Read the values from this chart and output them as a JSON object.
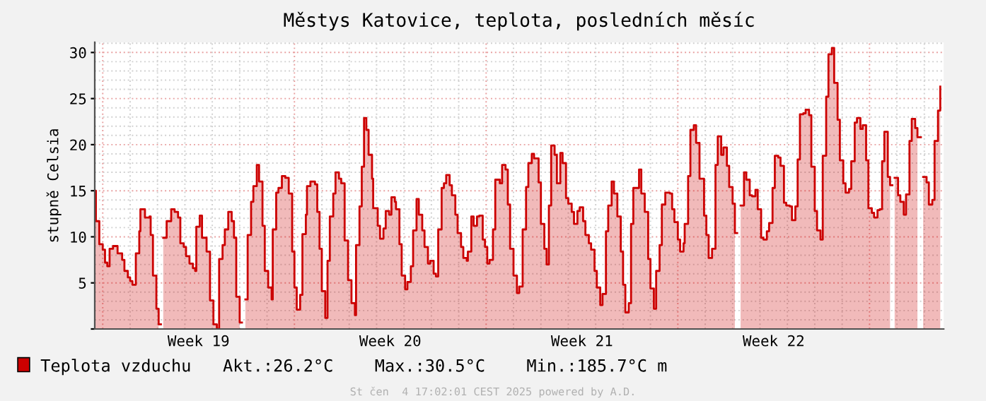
{
  "chart_data": {
    "type": "area",
    "title": "Městys Katovice, teplota, posledních měsíc",
    "ylabel": "stupně Celsia",
    "x": [
      "2025-05-04T17:00",
      "2025-05-04T18:00",
      "2025-05-04T21:00",
      "2025-05-05T00:00",
      "2025-05-05T02:00",
      "2025-05-05T04:00",
      "2025-05-05T06:00",
      "2025-05-05T09:00",
      "2025-05-05T13:00",
      "2025-05-05T17:00",
      "2025-05-05T19:00",
      "2025-05-05T22:00",
      "2025-05-06T00:00",
      "2025-05-06T02:00",
      "2025-05-06T05:00",
      "2025-05-06T08:00",
      "2025-05-06T09:00",
      "2025-05-06T13:00",
      "2025-05-06T17:00",
      "2025-05-06T18:00",
      "2025-05-06T20:00",
      "2025-05-06T23:00",
      "2025-05-07T01:00",
      "2025-05-07T03:00",
      "2025-05-07T05:00",
      "2025-05-07T08:00",
      "2025-05-07T12:00",
      "2025-05-07T15:00",
      "2025-05-07T18:00",
      "2025-05-07T20:00",
      "2025-05-07T23:00",
      "2025-05-08T01:00",
      "2025-05-08T04:00",
      "2025-05-08T07:00",
      "2025-05-08T09:00",
      "2025-05-08T10:00",
      "2025-05-08T13:00",
      "2025-05-08T15:00",
      "2025-05-08T19:00",
      "2025-05-08T22:00",
      "2025-05-09T01:00",
      "2025-05-09T04:00",
      "2025-05-09T06:00",
      "2025-05-09T09:00",
      "2025-05-09T11:00",
      "2025-05-09T14:00",
      "2025-05-09T17:00",
      "2025-05-09T19:00",
      "2025-05-09T21:00",
      "2025-05-10T00:00",
      "2025-05-10T02:00",
      "2025-05-10T05:00",
      "2025-05-10T07:00",
      "2025-05-10T10:00",
      "2025-05-10T12:00",
      "2025-05-10T15:00",
      "2025-05-10T17:00",
      "2025-05-10T20:00",
      "2025-05-10T22:00",
      "2025-05-11T01:00",
      "2025-05-11T04:00",
      "2025-05-11T05:00",
      "2025-05-11T08:00",
      "2025-05-11T10:00",
      "2025-05-11T13:00",
      "2025-05-11T16:00",
      "2025-05-11T19:00",
      "2025-05-11T22:00",
      "2025-05-12T00:00",
      "2025-05-12T02:00",
      "2025-05-12T05:00",
      "2025-05-12T07:00",
      "2025-05-12T10:00",
      "2025-05-12T11:00",
      "2025-05-12T14:00",
      "2025-05-12T18:00",
      "2025-05-12T20:00",
      "2025-05-12T22:00",
      "2025-05-13T00:00",
      "2025-05-13T03:00",
      "2025-05-13T05:00",
      "2025-05-13T07:00",
      "2025-05-13T10:00",
      "2025-05-13T12:00",
      "2025-05-13T15:00",
      "2025-05-13T17:00",
      "2025-05-13T20:00",
      "2025-05-13T23:00",
      "2025-05-14T02:00",
      "2025-05-14T05:00",
      "2025-05-14T06:00",
      "2025-05-14T09:00",
      "2025-05-14T11:00",
      "2025-05-14T13:00",
      "2025-05-14T15:00",
      "2025-05-14T17:00",
      "2025-05-14T20:00",
      "2025-05-14T21:00",
      "2025-05-15T01:00",
      "2025-05-15T03:00",
      "2025-05-15T06:00",
      "2025-05-15T08:00",
      "2025-05-15T11:00",
      "2025-05-15T13:00",
      "2025-05-15T16:00",
      "2025-05-15T17:00",
      "2025-05-15T20:00",
      "2025-05-15T22:00",
      "2025-05-16T01:00",
      "2025-05-16T03:00",
      "2025-05-16T06:00",
      "2025-05-16T08:00",
      "2025-05-16T11:00",
      "2025-05-16T13:00",
      "2025-05-16T16:00",
      "2025-05-16T18:00",
      "2025-05-16T21:00",
      "2025-05-16T23:00",
      "2025-05-17T02:00",
      "2025-05-17T04:00",
      "2025-05-17T06:00",
      "2025-05-17T09:00",
      "2025-05-17T11:00",
      "2025-05-17T13:00",
      "2025-05-17T16:00",
      "2025-05-17T18:00",
      "2025-05-17T21:00",
      "2025-05-17T23:00",
      "2025-05-18T02:00",
      "2025-05-18T04:00",
      "2025-05-18T07:00",
      "2025-05-18T08:00",
      "2025-05-18T11:00",
      "2025-05-18T13:00",
      "2025-05-18T16:00",
      "2025-05-18T18:00",
      "2025-05-18T21:00",
      "2025-05-18T23:00",
      "2025-05-19T01:00",
      "2025-05-19T03:00",
      "2025-05-19T06:00",
      "2025-05-19T08:00",
      "2025-05-19T12:00",
      "2025-05-19T14:00",
      "2025-05-19T17:00",
      "2025-05-19T19:00",
      "2025-05-19T21:00",
      "2025-05-20T00:00",
      "2025-05-20T03:00",
      "2025-05-20T05:00",
      "2025-05-20T08:00",
      "2025-05-20T11:00",
      "2025-05-20T13:00",
      "2025-05-20T16:00",
      "2025-05-20T18:00",
      "2025-05-20T22:00",
      "2025-05-21T00:00",
      "2025-05-21T03:00",
      "2025-05-21T05:00",
      "2025-05-21T07:00",
      "2025-05-21T09:00",
      "2025-05-21T12:00",
      "2025-05-21T14:00",
      "2025-05-21T17:00",
      "2025-05-21T19:00",
      "2025-05-21T22:00",
      "2025-05-22T00:00",
      "2025-05-22T03:00",
      "2025-05-22T05:00",
      "2025-05-22T08:00",
      "2025-05-22T10:00",
      "2025-05-22T13:00",
      "2025-05-22T15:00",
      "2025-05-22T18:00",
      "2025-05-22T20:00",
      "2025-05-22T23:00",
      "2025-05-23T01:00",
      "2025-05-23T04:00",
      "2025-05-23T06:00",
      "2025-05-23T09:00",
      "2025-05-23T11:00",
      "2025-05-23T14:00",
      "2025-05-23T16:00",
      "2025-05-23T19:00",
      "2025-05-23T22:00",
      "2025-05-24T00:00",
      "2025-05-24T02:00",
      "2025-05-24T05:00",
      "2025-05-24T07:00",
      "2025-05-24T09:00",
      "2025-05-24T14:00",
      "2025-05-24T16:00",
      "2025-05-24T19:00",
      "2025-05-24T22:00",
      "2025-05-25T00:00",
      "2025-05-25T03:00",
      "2025-05-25T05:00",
      "2025-05-25T08:00",
      "2025-05-25T10:00",
      "2025-05-25T13:00",
      "2025-05-25T17:00",
      "2025-05-25T19:00",
      "2025-05-25T21:00",
      "2025-05-26T00:00",
      "2025-05-26T02:00",
      "2025-05-26T05:00",
      "2025-05-26T06:00",
      "2025-05-26T09:00",
      "2025-05-26T11:00",
      "2025-05-26T14:00",
      "2025-05-26T16:00",
      "2025-05-26T19:00",
      "2025-05-26T23:00",
      "2025-05-27T01:00",
      "2025-05-27T03:00",
      "2025-05-27T06:00",
      "2025-05-27T09:00",
      "2025-05-27T11:00",
      "2025-05-27T14:00",
      "2025-05-27T16:00",
      "2025-05-27T19:00",
      "2025-05-27T21:00",
      "2025-05-28T00:00",
      "2025-05-28T02:00",
      "2025-05-28T04:00",
      "2025-05-28T07:00",
      "2025-05-28T10:00",
      "2025-05-28T12:00",
      "2025-05-28T15:00",
      "2025-05-28T17:00",
      "2025-05-28T20:00",
      "2025-05-28T22:00",
      "2025-05-29T01:00",
      "2025-05-29T03:00",
      "2025-05-29T06:00",
      "2025-05-29T08:00",
      "2025-05-29T11:00",
      "2025-05-29T13:00",
      "2025-05-29T16:00",
      "2025-05-29T18:00",
      "2025-05-29T21:00",
      "2025-05-29T23:00",
      "2025-05-30T02:00",
      "2025-05-30T04:00",
      "2025-05-30T07:00",
      "2025-05-30T09:00",
      "2025-05-30T11:00",
      "2025-05-30T14:00",
      "2025-05-30T16:00",
      "2025-05-30T19:00",
      "2025-05-30T21:00",
      "2025-05-31T00:00",
      "2025-05-31T02:00",
      "2025-05-31T05:00",
      "2025-05-31T07:00",
      "2025-05-31T10:00",
      "2025-05-31T12:00",
      "2025-05-31T15:00",
      "2025-05-31T17:00",
      "2025-05-31T20:00",
      "2025-05-31T22:00",
      "2025-06-01T01:00",
      "2025-06-01T03:00",
      "2025-06-01T06:00",
      "2025-06-01T08:00",
      "2025-06-01T11:00",
      "2025-06-01T13:00",
      "2025-06-01T16:00",
      "2025-06-01T18:00",
      "2025-06-01T21:00",
      "2025-06-01T23:00",
      "2025-06-02T02:00",
      "2025-06-02T04:00",
      "2025-06-02T07:00",
      "2025-06-02T09:00",
      "2025-06-02T11:00",
      "2025-06-02T13:00",
      "2025-06-02T16:00",
      "2025-06-02T18:00",
      "2025-06-02T20:00",
      "2025-06-02T22:00",
      "2025-06-03T01:00",
      "2025-06-03T03:00",
      "2025-06-03T06:00",
      "2025-06-03T08:00",
      "2025-06-03T11:00",
      "2025-06-03T13:00",
      "2025-06-03T16:00",
      "2025-06-03T18:00",
      "2025-06-03T21:00",
      "2025-06-03T23:00",
      "2025-06-04T02:00",
      "2025-06-04T04:00",
      "2025-06-04T07:00",
      "2025-06-04T09:00",
      "2025-06-04T12:00",
      "2025-06-04T14:00"
    ],
    "series": [
      {
        "name": "Teplota vzduchu",
        "color": "#cc0000",
        "values": [
          15.0,
          11.7,
          9.2,
          8.6,
          7.2,
          6.8,
          8.7,
          9.0,
          8.2,
          7.5,
          6.3,
          5.6,
          5.2,
          4.8,
          8.2,
          10.6,
          13.0,
          12.1,
          12.2,
          10.2,
          5.8,
          2.2,
          0.5,
          null,
          9.9,
          11.7,
          13.0,
          12.7,
          12.1,
          9.3,
          8.9,
          7.9,
          7.1,
          6.6,
          6.3,
          11.1,
          12.3,
          9.9,
          8.4,
          3.1,
          0.5,
          0.0,
          7.6,
          9.1,
          10.8,
          12.7,
          11.7,
          9.9,
          3.5,
          0.7,
          null,
          3.2,
          10.2,
          13.8,
          15.5,
          17.8,
          16.0,
          11.2,
          6.3,
          4.5,
          3.2,
          10.8,
          14.8,
          15.3,
          16.6,
          16.4,
          14.7,
          8.4,
          4.5,
          2.1,
          3.7,
          10.3,
          12.4,
          15.5,
          16.0,
          15.7,
          12.7,
          8.7,
          4.1,
          1.2,
          7.4,
          12.2,
          14.7,
          17.0,
          16.3,
          15.8,
          9.6,
          5.3,
          2.8,
          1.5,
          9.1,
          13.3,
          17.6,
          22.9,
          21.6,
          18.9,
          16.3,
          13.1,
          11.2,
          9.8,
          10.9,
          12.8,
          12.4,
          14.3,
          13.8,
          13.0,
          9.2,
          5.8,
          4.3,
          5.1,
          6.8,
          10.7,
          14.1,
          12.4,
          10.7,
          8.9,
          7.1,
          7.4,
          6.0,
          5.7,
          10.8,
          15.3,
          15.8,
          16.7,
          15.6,
          14.5,
          12.4,
          10.4,
          8.9,
          7.7,
          7.4,
          8.4,
          12.2,
          11.2,
          12.2,
          12.3,
          9.7,
          8.9,
          7.1,
          7.5,
          10.8,
          16.2,
          15.8,
          17.8,
          17.3,
          13.5,
          8.7,
          5.8,
          3.9,
          4.6,
          10.8,
          15.4,
          18.0,
          19.0,
          18.5,
          15.9,
          11.4,
          8.7,
          7.0,
          13.4,
          19.9,
          18.9,
          15.8,
          19.1,
          18.0,
          14.2,
          13.6,
          12.7,
          11.4,
          12.8,
          13.2,
          11.7,
          10.2,
          9.3,
          8.6,
          6.3,
          4.5,
          2.6,
          3.8,
          10.6,
          13.4,
          16.0,
          14.7,
          12.2,
          8.4,
          4.8,
          1.8,
          2.8,
          11.4,
          15.3,
          17.3,
          14.7,
          12.7,
          7.6,
          4.4,
          2.2,
          6.3,
          9.1,
          13.5,
          14.8,
          14.7,
          13.0,
          11.6,
          9.7,
          8.4,
          9.3,
          11.4,
          16.6,
          21.6,
          22.1,
          20.2,
          16.3,
          12.3,
          10.2,
          7.7,
          8.7,
          17.8,
          20.9,
          18.9,
          19.7,
          17.7,
          15.4,
          13.6,
          10.4,
          null,
          13.4,
          17.0,
          16.2,
          14.5,
          14.4,
          15.1,
          13.0,
          9.9,
          9.7,
          10.6,
          11.5,
          15.3,
          18.8,
          18.6,
          17.7,
          13.7,
          13.4,
          13.3,
          11.8,
          13.3,
          18.4,
          23.3,
          23.4,
          23.8,
          23.2,
          17.6,
          12.8,
          10.7,
          9.7,
          18.8,
          25.2,
          29.8,
          30.5,
          26.7,
          22.7,
          18.3,
          15.8,
          14.8,
          15.2,
          18.2,
          22.4,
          22.9,
          21.7,
          22.1,
          18.3,
          13.1,
          12.6,
          12.1,
          12.9,
          13.0,
          18.2,
          21.4,
          16.5,
          15.6,
          null,
          16.4,
          14.5,
          13.8,
          12.4,
          14.6,
          20.4,
          22.8,
          21.8,
          20.8,
          null,
          16.5,
          15.9,
          13.5,
          14.0,
          20.4,
          23.7,
          26.3
        ]
      }
    ],
    "xlim": [
      "2025-05-04T17:00",
      "2025-06-04T17:00"
    ],
    "xticks": [
      {
        "value": "2025-05-08T12:00",
        "label": "Week 19"
      },
      {
        "value": "2025-05-15T12:00",
        "label": "Week 20"
      },
      {
        "value": "2025-05-22T12:00",
        "label": "Week 21"
      },
      {
        "value": "2025-05-29T12:00",
        "label": "Week 22"
      }
    ],
    "ylim": [
      0,
      31.1
    ],
    "yticks": [
      {
        "value": 0,
        "label": null
      },
      5,
      10,
      15,
      20,
      25,
      30
    ],
    "grid": true,
    "legend": "bottom",
    "annotations": [
      "Akt.:26.2°C",
      "Max.:30.5°C",
      "Min.:185.7°C m",
      "St čen  4 17:02:01 CEST 2025 powered by A.D."
    ]
  }
}
